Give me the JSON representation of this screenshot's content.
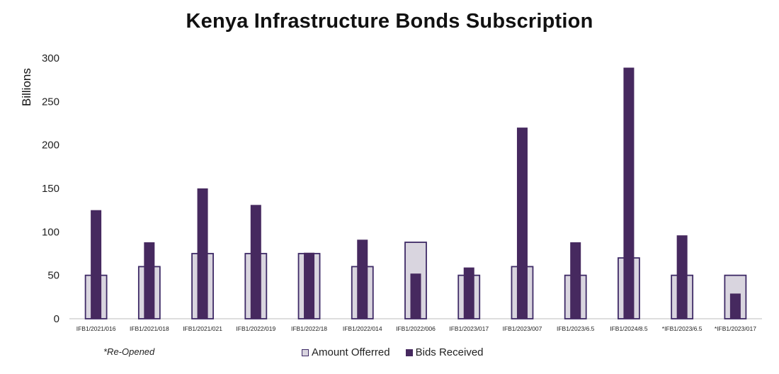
{
  "chart_data": {
    "type": "bar",
    "title": "Kenya Infrastructure Bonds Subscription",
    "ylabel": "Billions",
    "xlabel": "",
    "ylim": [
      0,
      300
    ],
    "yticks": [
      0,
      50,
      100,
      150,
      200,
      250,
      300
    ],
    "grid": false,
    "legend_position": "bottom",
    "categories": [
      "IFB1/2021/016",
      "IFB1/2021/018",
      "IFB1/2021/021",
      "IFB1/2022/019",
      "IFB1/2022/18",
      "IFB1/2022/014",
      "IFB1/2022/006",
      "IFB1/2023/017",
      "IFB1/2023/007",
      "IFB1/2023/6.5",
      "IFB1/2024/8.5",
      "*IFB1/2023/6.5",
      "*IFB1/2023/017"
    ],
    "series": [
      {
        "name": "Amount Offerred",
        "values": [
          50,
          60,
          75,
          75,
          75,
          60,
          88,
          50,
          60,
          50,
          70,
          50,
          50
        ]
      },
      {
        "name": "Bids Received",
        "values": [
          125,
          88,
          150,
          131,
          76,
          91,
          52,
          59,
          220,
          88,
          289,
          96,
          29
        ]
      }
    ],
    "note": "*Re-Opened"
  },
  "colors": {
    "offered_fill": "#d9d5df",
    "offered_border": "#3e2a66",
    "bids_fill": "#46295f",
    "axis": "#bdbdbd",
    "text": "#222222"
  }
}
